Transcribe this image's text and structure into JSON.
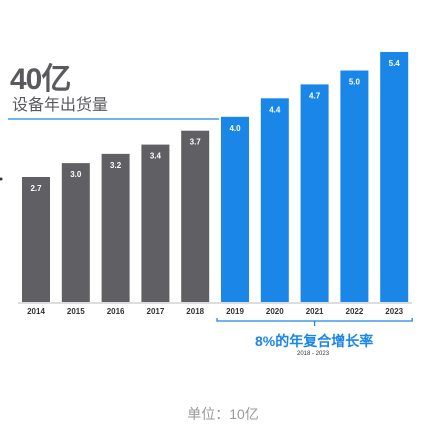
{
  "header": {
    "headline": "40亿",
    "subtitle": "设备年出货量"
  },
  "annotation": {
    "cagr_label": "8%的年复合增长率",
    "cagr_range": "2018 - 2023"
  },
  "footer": {
    "unit": "单位：10亿"
  },
  "colors": {
    "historical": "#606064",
    "forecast": "#1a86e8",
    "baseline_accent": "#1a86e8"
  },
  "chart_data": {
    "type": "bar",
    "categories": [
      "2014",
      "2015",
      "2016",
      "2017",
      "2018",
      "2019",
      "2020",
      "2021",
      "2022",
      "2023"
    ],
    "values": [
      2.7,
      3.0,
      3.2,
      3.4,
      3.7,
      4.0,
      4.4,
      4.7,
      5.0,
      5.4
    ],
    "data_labels": [
      "2.7",
      "3.0",
      "3.2",
      "3.4",
      "3.7",
      "4.0",
      "4.4",
      "4.7",
      "5.0",
      "5.4"
    ],
    "forecast_start_index": 5,
    "ylim": [
      0,
      5.4
    ],
    "title": "40亿",
    "subtitle": "设备年出货量",
    "xlabel": "",
    "ylabel": "",
    "grid": false,
    "legend": "none"
  }
}
